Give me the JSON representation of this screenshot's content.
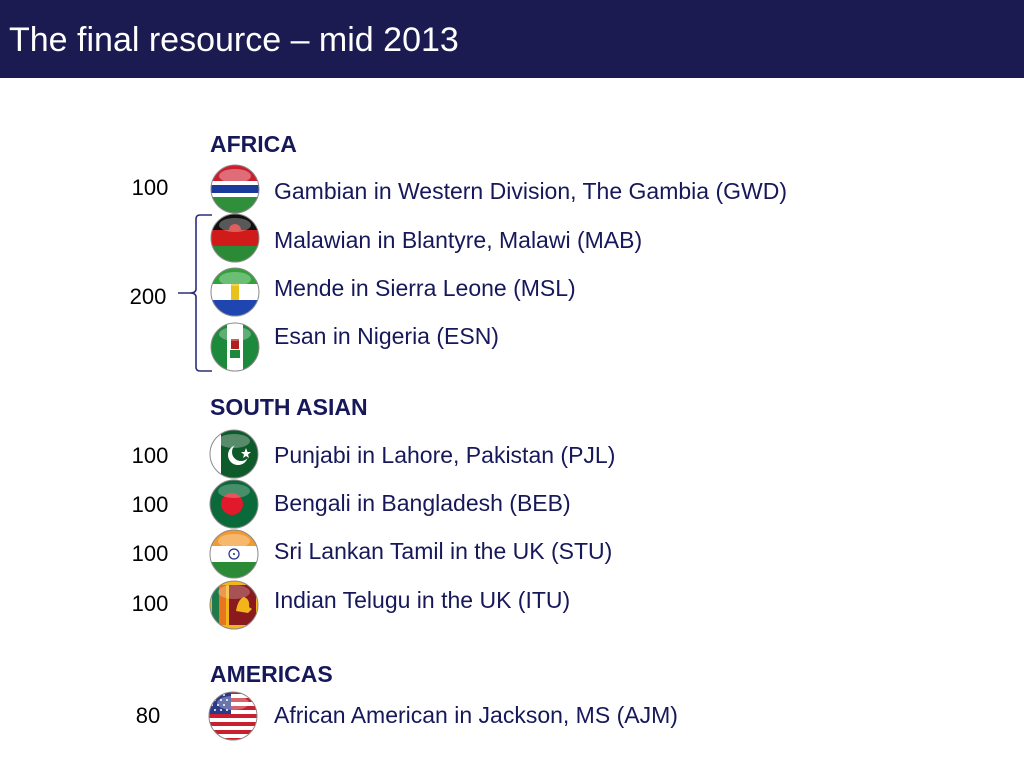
{
  "slide": {
    "title": "The final resource – mid 2013"
  },
  "africa": {
    "heading": "AFRICA",
    "gwd": {
      "count": "100",
      "label": "Gambian in Western Division, The Gambia (GWD)",
      "flag_icon": "gambia-flag-icon"
    },
    "mab": {
      "label": "Malawian in Blantyre, Malawi (MAB)",
      "flag_icon": "malawi-flag-icon"
    },
    "msl": {
      "label": "Mende in Sierra Leone (MSL)",
      "flag_icon": "sierra-leone-flag-icon"
    },
    "esn": {
      "label": "Esan in Nigeria (ESN)",
      "flag_icon": "nigeria-flag-icon"
    },
    "group_count": "200"
  },
  "south_asian": {
    "heading": "SOUTH ASIAN",
    "pjl": {
      "count": "100",
      "label": "Punjabi in Lahore, Pakistan (PJL)",
      "flag_icon": "pakistan-flag-icon"
    },
    "beb": {
      "count": "100",
      "label": "Bengali in Bangladesh (BEB)",
      "flag_icon": "bangladesh-flag-icon"
    },
    "stu": {
      "count": "100",
      "label": "Sri Lankan Tamil in the UK (STU)",
      "flag_icon": "india-flag-icon"
    },
    "itu": {
      "count": "100",
      "label": "Indian Telugu in the UK (ITU)",
      "flag_icon": "sri-lanka-flag-icon"
    }
  },
  "americas": {
    "heading": "AMERICAS",
    "ajm": {
      "count": "80",
      "label": "African American in Jackson, MS (AJM)",
      "flag_icon": "usa-flag-icon"
    }
  },
  "colors": {
    "title_bar": "#1b1b52",
    "heading_text": "#16185a",
    "brace": "#2b2f7a"
  }
}
